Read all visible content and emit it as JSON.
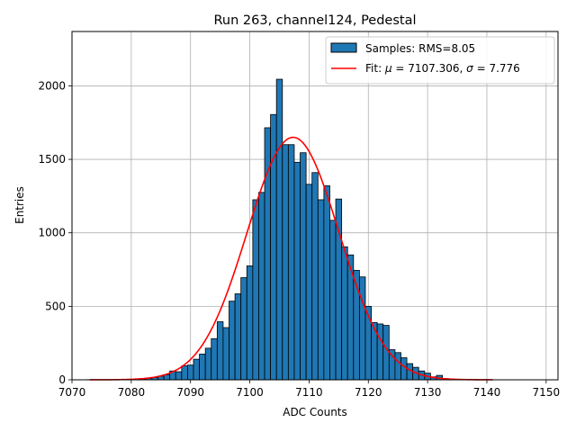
{
  "chart_data": {
    "type": "bar",
    "title": "Run 263, channel124, Pedestal",
    "xlabel": "ADC Counts",
    "ylabel": "Entries",
    "xlim": [
      7070,
      7152
    ],
    "ylim": [
      0,
      2370
    ],
    "xticks": [
      7070,
      7080,
      7090,
      7100,
      7110,
      7120,
      7130,
      7140,
      7150
    ],
    "yticks": [
      0,
      500,
      1000,
      1500,
      2000
    ],
    "grid": true,
    "legend_position": "top-right",
    "colors": {
      "bars": "#1f77b4",
      "bar_edge": "#000000",
      "fit": "#ff0000",
      "grid": "#b0b0b0"
    },
    "histogram": {
      "name": "Samples: RMS=8.05",
      "bin_width": 1,
      "bins": [
        {
          "x": 7073,
          "y": 1
        },
        {
          "x": 7074,
          "y": 1
        },
        {
          "x": 7075,
          "y": 1
        },
        {
          "x": 7076,
          "y": 1
        },
        {
          "x": 7077,
          "y": 1
        },
        {
          "x": 7078,
          "y": 2
        },
        {
          "x": 7079,
          "y": 2
        },
        {
          "x": 7080,
          "y": 3
        },
        {
          "x": 7081,
          "y": 4
        },
        {
          "x": 7082,
          "y": 6
        },
        {
          "x": 7083,
          "y": 10
        },
        {
          "x": 7084,
          "y": 15
        },
        {
          "x": 7085,
          "y": 25
        },
        {
          "x": 7086,
          "y": 35
        },
        {
          "x": 7087,
          "y": 60
        },
        {
          "x": 7088,
          "y": 55
        },
        {
          "x": 7089,
          "y": 95
        },
        {
          "x": 7090,
          "y": 100
        },
        {
          "x": 7091,
          "y": 140
        },
        {
          "x": 7092,
          "y": 175
        },
        {
          "x": 7093,
          "y": 215
        },
        {
          "x": 7094,
          "y": 280
        },
        {
          "x": 7095,
          "y": 395
        },
        {
          "x": 7096,
          "y": 355
        },
        {
          "x": 7097,
          "y": 535
        },
        {
          "x": 7098,
          "y": 585
        },
        {
          "x": 7099,
          "y": 695
        },
        {
          "x": 7100,
          "y": 775
        },
        {
          "x": 7101,
          "y": 1225
        },
        {
          "x": 7102,
          "y": 1275
        },
        {
          "x": 7103,
          "y": 1715
        },
        {
          "x": 7104,
          "y": 1805
        },
        {
          "x": 7105,
          "y": 2045
        },
        {
          "x": 7106,
          "y": 1600
        },
        {
          "x": 7107,
          "y": 1600
        },
        {
          "x": 7108,
          "y": 1480
        },
        {
          "x": 7109,
          "y": 1545
        },
        {
          "x": 7110,
          "y": 1330
        },
        {
          "x": 7111,
          "y": 1410
        },
        {
          "x": 7112,
          "y": 1225
        },
        {
          "x": 7113,
          "y": 1320
        },
        {
          "x": 7114,
          "y": 1085
        },
        {
          "x": 7115,
          "y": 1230
        },
        {
          "x": 7116,
          "y": 905
        },
        {
          "x": 7117,
          "y": 850
        },
        {
          "x": 7118,
          "y": 745
        },
        {
          "x": 7119,
          "y": 700
        },
        {
          "x": 7120,
          "y": 500
        },
        {
          "x": 7121,
          "y": 390
        },
        {
          "x": 7122,
          "y": 380
        },
        {
          "x": 7123,
          "y": 370
        },
        {
          "x": 7124,
          "y": 205
        },
        {
          "x": 7125,
          "y": 185
        },
        {
          "x": 7126,
          "y": 150
        },
        {
          "x": 7127,
          "y": 110
        },
        {
          "x": 7128,
          "y": 85
        },
        {
          "x": 7129,
          "y": 60
        },
        {
          "x": 7130,
          "y": 45
        },
        {
          "x": 7131,
          "y": 20
        },
        {
          "x": 7132,
          "y": 30
        },
        {
          "x": 7133,
          "y": 8
        },
        {
          "x": 7134,
          "y": 5
        },
        {
          "x": 7135,
          "y": 4
        },
        {
          "x": 7136,
          "y": 3
        },
        {
          "x": 7137,
          "y": 2
        },
        {
          "x": 7138,
          "y": 2
        },
        {
          "x": 7139,
          "y": 1
        },
        {
          "x": 7140,
          "y": 1
        }
      ]
    },
    "fit": {
      "name": "Fit: μ = 7107.306, σ = 7.776",
      "label_prefix": "Fit: ",
      "mu_symbol": "μ",
      "mu_text": " = 7107.306, ",
      "sigma_symbol": "σ",
      "sigma_text": " = 7.776",
      "type": "gaussian",
      "mu": 7107.306,
      "sigma": 7.776,
      "amplitude": 1650,
      "x_range": [
        7073,
        7141
      ]
    }
  }
}
